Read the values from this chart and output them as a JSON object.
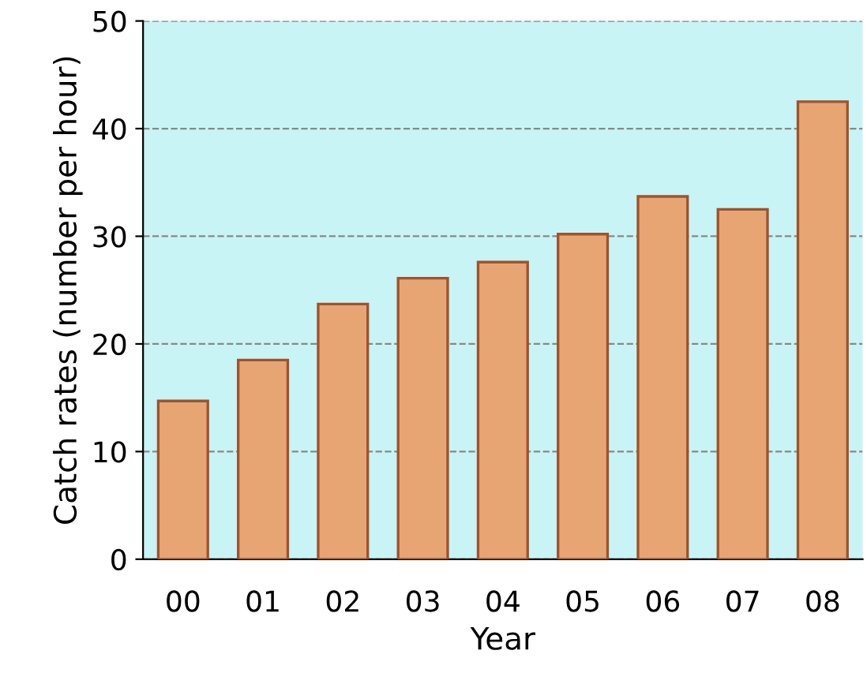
{
  "chart_data": {
    "type": "bar",
    "xlabel": "Year",
    "ylabel": "Catch rates (number per hour)",
    "categories": [
      "00",
      "01",
      "02",
      "03",
      "04",
      "05",
      "06",
      "07",
      "08"
    ],
    "values": [
      14.7,
      18.5,
      23.7,
      26.1,
      27.6,
      30.2,
      33.7,
      32.5,
      42.5
    ],
    "color": "#e8a574",
    "ylim": [
      0,
      50
    ],
    "yticks": [
      0,
      10,
      20,
      30,
      40,
      50
    ],
    "grid": "y"
  }
}
